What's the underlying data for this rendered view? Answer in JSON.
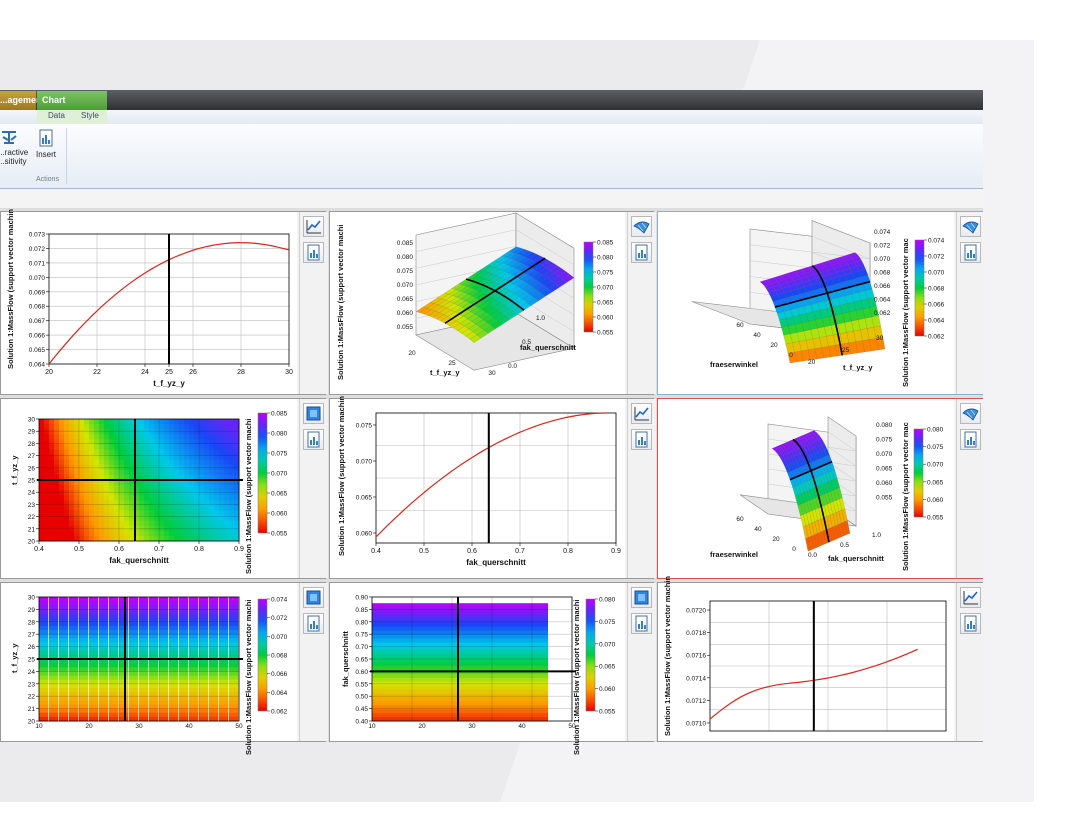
{
  "ribbon": {
    "tab_management": "...agement",
    "tab_chart": "Chart",
    "subtab_data": "Data",
    "subtab_style": "Style",
    "btn_sensitivity_line1": "...ractive",
    "btn_sensitivity_line2": "...sitivity",
    "btn_insert": "Insert",
    "group_actions": "Actions"
  },
  "icons": {
    "line_chart": "line-chart-icon",
    "surface_3d": "surface-3d-icon",
    "contour": "contour-icon",
    "report": "report-icon"
  },
  "colors": {
    "curve": "#d9261c",
    "crosshair": "#000000",
    "chart_tab": "#5fae45",
    "management_tab": "#b8912e"
  },
  "panels": [
    {
      "ylabel": "Solution 1:MassFlow (support vector machin",
      "xlabel": "t_f_yz_y",
      "xticks": [
        "20",
        "22",
        "24",
        "25",
        "26",
        "28",
        "30"
      ],
      "yticks": [
        "0.064",
        "0.065",
        "0.066",
        "0.067",
        "0.068",
        "0.069",
        "0.070",
        "0.071",
        "0.072",
        "0.073"
      ]
    },
    {
      "zlabel": "Solution 1:MassFlow (support vector machi",
      "axis1": "t_f_yz_y",
      "axis2": "fak_querschnitt",
      "zticks": [
        "0.055",
        "0.060",
        "0.065",
        "0.070",
        "0.075",
        "0.080",
        "0.085"
      ],
      "axis1_ticks": [
        "20",
        "25",
        "30"
      ],
      "axis2_ticks": [
        "0.0",
        "0.5",
        "1.0"
      ],
      "colorbar": [
        "0.085",
        "0.080",
        "0.075",
        "0.070",
        "0.065",
        "0.060",
        "0.055"
      ]
    },
    {
      "zlabel": "Solution 1:MassFlow (support vector mac",
      "axis1": "fraeserwinkel",
      "axis2": "t_f_yz_y",
      "zticks": [
        "0.062",
        "0.064",
        "0.066",
        "0.068",
        "0.070",
        "0.072",
        "0.074"
      ],
      "axis1_ticks": [
        "60",
        "40",
        "20",
        "0"
      ],
      "axis2_ticks": [
        "20",
        "25",
        "30"
      ],
      "colorbar": [
        "0.074",
        "0.072",
        "0.070",
        "0.068",
        "0.066",
        "0.064",
        "0.062"
      ]
    },
    {
      "ylabel": "t_f_yz_y",
      "xlabel": "fak_querschnitt",
      "colorbar_label": "Solution 1:MassFlow (support vector machi",
      "xticks": [
        "0.4",
        "0.5",
        "0.6",
        "0.7",
        "0.8",
        "0.9"
      ],
      "yticks": [
        "20",
        "21",
        "22",
        "23",
        "24",
        "25",
        "26",
        "27",
        "28",
        "29",
        "30"
      ],
      "colorbar": [
        "0.085",
        "0.080",
        "0.075",
        "0.070",
        "0.065",
        "0.060",
        "0.055"
      ]
    },
    {
      "ylabel": "Solution 1:MassFlow (support vector machin",
      "xlabel": "fak_querschnitt",
      "xticks": [
        "0.4",
        "0.5",
        "0.6",
        "0.7",
        "0.8",
        "0.9"
      ],
      "yticks": [
        "0.060",
        "0.065",
        "0.070",
        "0.075"
      ]
    },
    {
      "zlabel": "Solution 1:MassFlow (support vector mac",
      "axis1": "fraeserwinkel",
      "axis2": "fak_querschnitt",
      "zticks": [
        "0.055",
        "0.060",
        "0.065",
        "0.070",
        "0.075",
        "0.080"
      ],
      "axis1_ticks": [
        "60",
        "40",
        "20",
        "0"
      ],
      "axis2_ticks": [
        "0.0",
        "0.5",
        "1.0"
      ],
      "colorbar": [
        "0.080",
        "0.075",
        "0.070",
        "0.065",
        "0.060",
        "0.055"
      ]
    },
    {
      "ylabel": "t_f_yz_y",
      "colorbar_label": "Solution 1:MassFlow (support vector machi",
      "xticks": [
        "10",
        "20",
        "30",
        "40",
        "50"
      ],
      "yticks": [
        "20",
        "21",
        "22",
        "23",
        "24",
        "25",
        "26",
        "27",
        "28",
        "29",
        "30"
      ],
      "colorbar": [
        "0.074",
        "0.072",
        "0.070",
        "0.068",
        "0.066",
        "0.064",
        "0.062"
      ]
    },
    {
      "ylabel": "fak_querschnitt",
      "colorbar_label": "Solution 1:MassFlow (support vector machi",
      "xticks": [
        "10",
        "20",
        "30",
        "40",
        "50"
      ],
      "yticks": [
        "0.40",
        "0.45",
        "0.50",
        "0.55",
        "0.60",
        "0.65",
        "0.70",
        "0.75",
        "0.80",
        "0.85",
        "0.90"
      ],
      "colorbar": [
        "0.080",
        "0.075",
        "0.070",
        "0.065",
        "0.060",
        "0.055"
      ]
    },
    {
      "ylabel": "Solution 1:MassFlow (support vector machin",
      "yticks": [
        "0.0710",
        "0.0712",
        "0.0714",
        "0.0716",
        "0.0718",
        "0.0720"
      ]
    }
  ]
}
